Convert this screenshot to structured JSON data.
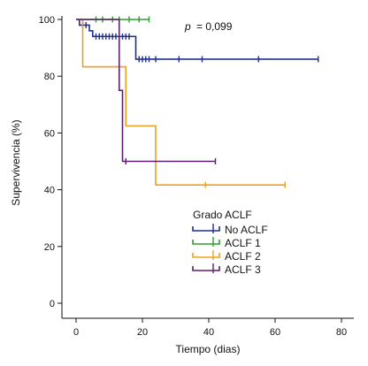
{
  "chart_data": {
    "type": "line",
    "xlabel": "Tiempo (dias)",
    "ylabel": "Supervivencia (%)",
    "xlim": [
      0,
      80
    ],
    "ylim": [
      0,
      100
    ],
    "x_ticks": [
      0,
      20,
      40,
      60,
      80
    ],
    "y_ticks": [
      0,
      20,
      40,
      60,
      80,
      100
    ],
    "annotation": {
      "p_label": "p",
      "p_value": "= 0,099"
    },
    "legend": {
      "title": "Grado ACLF",
      "placement": "center-right"
    },
    "grid": false,
    "series": [
      {
        "name": "No ACLF",
        "color": "#1f2f8a",
        "steps": [
          [
            0,
            100
          ],
          [
            1,
            98
          ],
          [
            4,
            96
          ],
          [
            5,
            94
          ],
          [
            18,
            86
          ],
          [
            73,
            86
          ]
        ],
        "censored": [
          [
            2,
            98
          ],
          [
            3,
            98
          ],
          [
            6,
            94
          ],
          [
            7,
            94
          ],
          [
            8,
            94
          ],
          [
            9,
            94
          ],
          [
            10,
            94
          ],
          [
            11,
            94
          ],
          [
            12,
            94
          ],
          [
            13,
            94
          ],
          [
            14,
            94
          ],
          [
            15,
            94
          ],
          [
            16,
            94
          ],
          [
            19,
            86
          ],
          [
            20,
            86
          ],
          [
            21,
            86
          ],
          [
            22,
            86
          ],
          [
            24,
            86
          ],
          [
            31,
            86
          ],
          [
            38,
            86
          ],
          [
            55,
            86
          ],
          [
            73,
            86
          ]
        ]
      },
      {
        "name": "ACLF 1",
        "color": "#2ca02c",
        "steps": [
          [
            0,
            100
          ],
          [
            22,
            100
          ]
        ],
        "censored": [
          [
            6,
            100
          ],
          [
            8,
            100
          ],
          [
            11,
            100
          ],
          [
            13,
            100
          ],
          [
            16,
            100
          ],
          [
            19,
            100
          ],
          [
            22,
            100
          ]
        ]
      },
      {
        "name": "ACLF 2",
        "color": "#f0a020",
        "steps": [
          [
            0,
            100
          ],
          [
            2,
            83.3
          ],
          [
            15,
            62.5
          ],
          [
            24,
            41.7
          ],
          [
            63,
            41.7
          ]
        ],
        "censored": [
          [
            39,
            41.7
          ],
          [
            63,
            41.7
          ]
        ]
      },
      {
        "name": "ACLF 3",
        "color": "#5a1f6e",
        "steps": [
          [
            0,
            100
          ],
          [
            13,
            75
          ],
          [
            14,
            50
          ],
          [
            42,
            50
          ]
        ],
        "censored": [
          [
            15,
            50
          ],
          [
            42,
            50
          ]
        ]
      }
    ]
  }
}
